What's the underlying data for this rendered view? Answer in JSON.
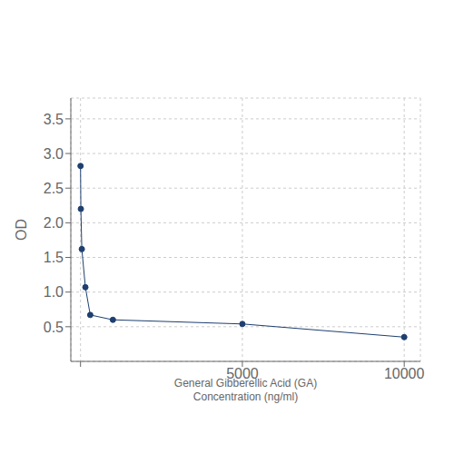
{
  "chart_data": {
    "type": "line",
    "xlabel": "General Gibberellic Acid (GA)\nConcentration (ng/ml)",
    "ylabel": "OD",
    "x": [
      0,
      10,
      40,
      150,
      300,
      1000,
      5000,
      10000
    ],
    "values": [
      2.82,
      2.2,
      1.62,
      1.07,
      0.67,
      0.6,
      0.54,
      0.35
    ],
    "color": "#1e3f6f",
    "marker": "circle",
    "line_style": "solid",
    "xlim": [
      -300,
      10500
    ],
    "ylim": [
      0,
      3.8
    ],
    "xticks": [
      {
        "value": 0,
        "label": null
      },
      5000,
      10000
    ],
    "yticks": [
      0.5,
      {
        "value": 1.0,
        "label": "1.0"
      },
      1.5,
      {
        "value": 2.0,
        "label": "2.0"
      },
      2.5,
      {
        "value": 3.0,
        "label": "3.0"
      },
      3.5
    ],
    "grid": true
  }
}
